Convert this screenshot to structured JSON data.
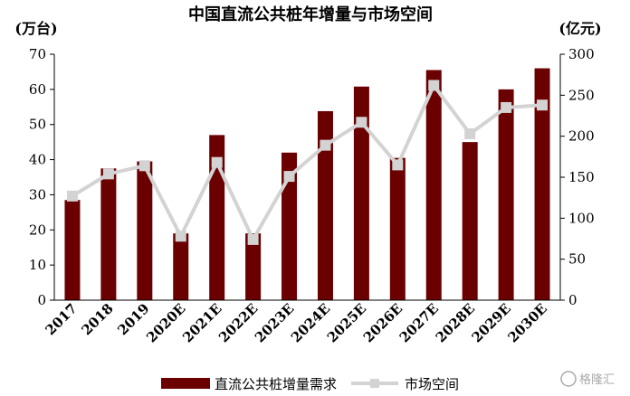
{
  "chart_data": {
    "type": "bar+line",
    "title": "中国直流公共桩年增量与市场空间",
    "left_unit": "(万台)",
    "right_unit": "(亿元)",
    "categories": [
      "2017",
      "2018",
      "2019",
      "2020E",
      "2021E",
      "2022E",
      "2023E",
      "2024E",
      "2025E",
      "2026E",
      "2027E",
      "2028E",
      "2029E",
      "2030E"
    ],
    "series": [
      {
        "name": "直流公共桩增量需求",
        "type": "bar",
        "axis": "left",
        "color": "#6b0000",
        "values": [
          28.5,
          37.5,
          39.5,
          19,
          47,
          19,
          42,
          53.8,
          60.8,
          40.5,
          65.5,
          45,
          60,
          66
        ]
      },
      {
        "name": "市场空间",
        "type": "line",
        "axis": "right",
        "color": "#d3d3d3",
        "values": [
          127,
          154,
          164,
          78,
          168,
          74,
          151,
          189,
          217,
          165,
          262,
          203,
          235,
          238
        ]
      }
    ],
    "yleft": {
      "min": 0,
      "max": 70,
      "ticks": [
        0,
        10,
        20,
        30,
        40,
        50,
        60,
        70
      ]
    },
    "yright": {
      "min": 0,
      "max": 300,
      "ticks": [
        0,
        50,
        100,
        150,
        200,
        250,
        300
      ]
    },
    "legend_position": "bottom",
    "grid": false
  },
  "watermark": {
    "text": "格隆汇"
  }
}
